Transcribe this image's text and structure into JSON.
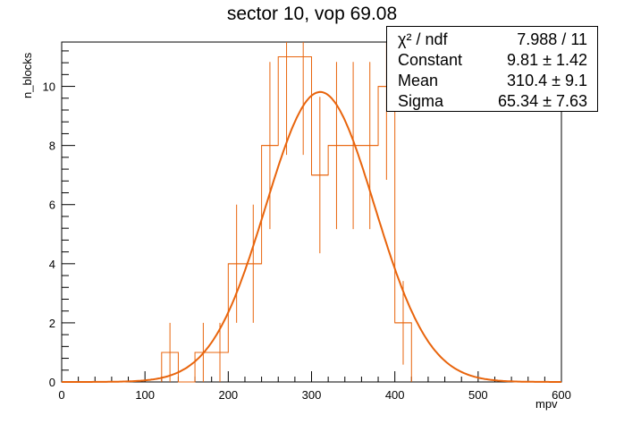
{
  "chart_data": {
    "type": "histogram",
    "title": "sector 10, vop 69.08",
    "xlabel": "mpv",
    "ylabel": "n_blocks",
    "xlim": [
      0,
      600
    ],
    "ylim": [
      0,
      11.5
    ],
    "xticks": [
      0,
      100,
      200,
      300,
      400,
      500,
      600
    ],
    "yticks": [
      0,
      2,
      4,
      6,
      8,
      10
    ],
    "grid": false,
    "line_color": "#e8640c",
    "bin_width": 20,
    "bins": [
      {
        "x0": 120,
        "x1": 140,
        "value": 1
      },
      {
        "x0": 140,
        "x1": 160,
        "value": 0
      },
      {
        "x0": 160,
        "x1": 180,
        "value": 1
      },
      {
        "x0": 180,
        "x1": 200,
        "value": 1
      },
      {
        "x0": 200,
        "x1": 220,
        "value": 4
      },
      {
        "x0": 220,
        "x1": 240,
        "value": 4
      },
      {
        "x0": 240,
        "x1": 260,
        "value": 8
      },
      {
        "x0": 260,
        "x1": 280,
        "value": 11
      },
      {
        "x0": 280,
        "x1": 300,
        "value": 11
      },
      {
        "x0": 300,
        "x1": 320,
        "value": 7
      },
      {
        "x0": 320,
        "x1": 340,
        "value": 8
      },
      {
        "x0": 340,
        "x1": 360,
        "value": 8
      },
      {
        "x0": 360,
        "x1": 380,
        "value": 8
      },
      {
        "x0": 380,
        "x1": 400,
        "value": 10
      },
      {
        "x0": 400,
        "x1": 420,
        "value": 2
      }
    ],
    "fit": {
      "type": "gaus",
      "constant": 9.81,
      "mean": 310.4,
      "sigma": 65.34
    }
  },
  "stats_box": {
    "chi2_label": "χ² / ndf",
    "chi2_value": "7.988 / 11",
    "constant_label": "Constant",
    "constant_value": "9.81 ± 1.42",
    "mean_label": "Mean",
    "mean_value": "310.4 ± 9.1",
    "sigma_label": "Sigma",
    "sigma_value": "65.34 ± 7.63"
  }
}
